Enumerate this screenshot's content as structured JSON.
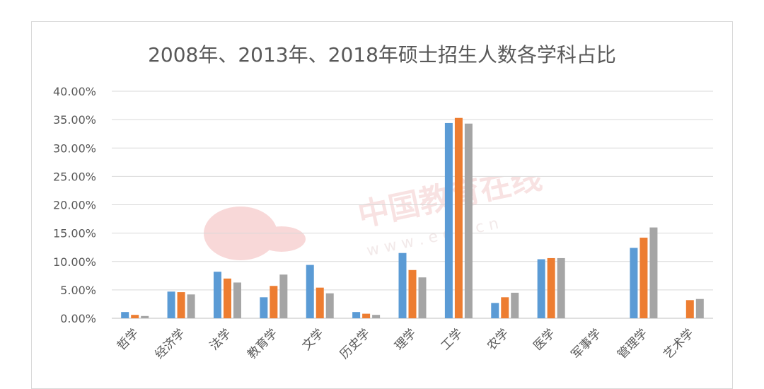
{
  "chart_data": {
    "type": "bar",
    "title": "2008年、2013年、2018年硕士招生人数各学科占比",
    "categories": [
      "哲学",
      "经济学",
      "法学",
      "教育学",
      "文学",
      "历史学",
      "理学",
      "工学",
      "农学",
      "医学",
      "军事学",
      "管理学",
      "艺术学"
    ],
    "series": [
      {
        "color": "#5b9bd5",
        "values": [
          1.1,
          4.7,
          8.2,
          3.7,
          9.4,
          1.1,
          11.5,
          34.4,
          2.7,
          10.4,
          0.0,
          12.4,
          0.0
        ]
      },
      {
        "color": "#ed7d31",
        "values": [
          0.6,
          4.6,
          7.0,
          5.7,
          5.4,
          0.8,
          8.5,
          35.3,
          3.7,
          10.6,
          0.0,
          14.2,
          3.2
        ]
      },
      {
        "color": "#a5a5a5",
        "values": [
          0.4,
          4.2,
          6.3,
          7.7,
          4.4,
          0.6,
          7.2,
          34.3,
          4.5,
          10.6,
          0.0,
          16.0,
          3.4
        ]
      }
    ],
    "ylim": [
      0,
      40
    ],
    "yticks": [
      "0.00%",
      "5.00%",
      "10.00%",
      "15.00%",
      "20.00%",
      "25.00%",
      "30.00%",
      "35.00%",
      "40.00%"
    ],
    "grid": true,
    "legend": "none"
  },
  "watermark": {
    "text": "中国教育在线",
    "subtext": "w w w . e o l . c n"
  }
}
